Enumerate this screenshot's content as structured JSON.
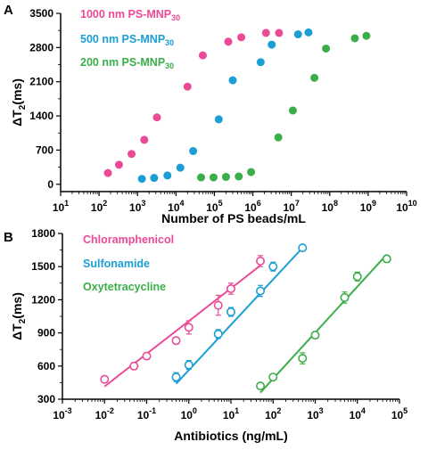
{
  "chart_data": [
    {
      "panel": "A",
      "type": "scatter",
      "xscale": "log",
      "xlim": [
        10,
        10000000000
      ],
      "ylim": [
        -150,
        3500
      ],
      "xlabel": "Number of PS beads/mL",
      "ylabel": {
        "main": "ΔT",
        "sub": "2",
        "unit": "(ms)"
      },
      "x_tick_labels": [
        {
          "base": "10",
          "exp": "1",
          "value": 10
        },
        {
          "base": "10",
          "exp": "2",
          "value": 100
        },
        {
          "base": "10",
          "exp": "3",
          "value": 1000
        },
        {
          "base": "10",
          "exp": "4",
          "value": 10000
        },
        {
          "base": "10",
          "exp": "5",
          "value": 100000
        },
        {
          "base": "10",
          "exp": "6",
          "value": 1000000
        },
        {
          "base": "10",
          "exp": "7",
          "value": 10000000
        },
        {
          "base": "10",
          "exp": "8",
          "value": 100000000
        },
        {
          "base": "10",
          "exp": "9",
          "value": 1000000000
        },
        {
          "base": "10",
          "exp": "10",
          "value": 10000000000
        }
      ],
      "y_tick_labels": [
        {
          "text": "0",
          "value": 0
        },
        {
          "text": "700",
          "value": 700
        },
        {
          "text": "1400",
          "value": 1400
        },
        {
          "text": "2100",
          "value": 2100
        },
        {
          "text": "2800",
          "value": 2800
        },
        {
          "text": "3500",
          "value": 3500
        }
      ],
      "legend": [
        {
          "main": "1000 nm PS-MNP",
          "sub": "30",
          "color": "#ec4a97"
        },
        {
          "main": "500 nm PS-MNP",
          "sub": "30",
          "color": "#1b9ed4"
        },
        {
          "main": "200 nm PS-MNP",
          "sub": "30",
          "color": "#3bae49"
        }
      ],
      "series": [
        {
          "color": "#ec4a97",
          "points": [
            [
              170,
              230
            ],
            [
              330,
              400
            ],
            [
              700,
              620
            ],
            [
              1500,
              910
            ],
            [
              3200,
              1370
            ],
            [
              20000,
              2000
            ],
            [
              50000,
              2640
            ],
            [
              230000,
              2920
            ],
            [
              500000,
              3010
            ],
            [
              2200000,
              3100
            ],
            [
              4800000,
              3100
            ]
          ]
        },
        {
          "color": "#1b9ed4",
          "points": [
            [
              1300,
              110
            ],
            [
              2700,
              130
            ],
            [
              6000,
              180
            ],
            [
              13000,
              340
            ],
            [
              28000,
              680
            ],
            [
              130000,
              1330
            ],
            [
              300000,
              2130
            ],
            [
              1600000,
              2500
            ],
            [
              3100000,
              2860
            ],
            [
              15000000,
              3070
            ],
            [
              28000000,
              3110
            ]
          ]
        },
        {
          "color": "#3bae49",
          "points": [
            [
              45000,
              140
            ],
            [
              95000,
              140
            ],
            [
              200000,
              150
            ],
            [
              430000,
              160
            ],
            [
              900000,
              250
            ],
            [
              4600000,
              960
            ],
            [
              11000000,
              1510
            ],
            [
              40000000,
              2180
            ],
            [
              80000000,
              2780
            ],
            [
              450000000,
              2990
            ],
            [
              900000000,
              3040
            ]
          ]
        }
      ]
    },
    {
      "panel": "B",
      "type": "scatter",
      "xscale": "log",
      "xlim": [
        0.001,
        100000
      ],
      "ylim": [
        300,
        1800
      ],
      "xlabel": "Antibiotics (ng/mL)",
      "ylabel": {
        "main": "ΔT",
        "sub": "2",
        "unit": "(ms)"
      },
      "x_tick_labels": [
        {
          "base": "10",
          "exp": "-3",
          "value": 0.001
        },
        {
          "base": "10",
          "exp": "-2",
          "value": 0.01
        },
        {
          "base": "10",
          "exp": "-1",
          "value": 0.1
        },
        {
          "base": "10",
          "exp": "0",
          "value": 1
        },
        {
          "base": "10",
          "exp": "1",
          "value": 10
        },
        {
          "base": "10",
          "exp": "2",
          "value": 100
        },
        {
          "base": "10",
          "exp": "3",
          "value": 1000
        },
        {
          "base": "10",
          "exp": "4",
          "value": 10000
        },
        {
          "base": "10",
          "exp": "5",
          "value": 100000
        }
      ],
      "y_tick_labels": [
        {
          "text": "300",
          "value": 300
        },
        {
          "text": "600",
          "value": 600
        },
        {
          "text": "900",
          "value": 900
        },
        {
          "text": "1200",
          "value": 1200
        },
        {
          "text": "1500",
          "value": 1500
        },
        {
          "text": "1800",
          "value": 1800
        }
      ],
      "legend": [
        {
          "main": "Chloramphenicol",
          "sub": "",
          "color": "#ec4a97"
        },
        {
          "main": "Sulfonamide",
          "sub": "",
          "color": "#1b9ed4"
        },
        {
          "main": "Oxytetracycline",
          "sub": "",
          "color": "#3bae49"
        }
      ],
      "series": [
        {
          "color": "#ec4a97",
          "points": [
            [
              0.01,
              480,
              20
            ],
            [
              0.05,
              600,
              30
            ],
            [
              0.1,
              690,
              30
            ],
            [
              0.5,
              830,
              30
            ],
            [
              1,
              950,
              60
            ],
            [
              5,
              1150,
              90
            ],
            [
              10,
              1300,
              50
            ],
            [
              50,
              1550,
              50
            ]
          ],
          "fit": [
            [
              0.01,
              415
            ],
            [
              50,
              1510
            ]
          ]
        },
        {
          "color": "#1b9ed4",
          "points": [
            [
              0.5,
              500,
              40
            ],
            [
              1,
              610,
              40
            ],
            [
              5,
              890,
              40
            ],
            [
              10,
              1090,
              40
            ],
            [
              50,
              1280,
              50
            ],
            [
              100,
              1500,
              40
            ],
            [
              500,
              1670,
              20
            ]
          ],
          "fit": [
            [
              0.5,
              440
            ],
            [
              500,
              1670
            ]
          ]
        },
        {
          "color": "#3bae49",
          "points": [
            [
              50,
              420,
              20
            ],
            [
              100,
              500,
              20
            ],
            [
              500,
              670,
              50
            ],
            [
              1000,
              880,
              30
            ],
            [
              5000,
              1220,
              50
            ],
            [
              10000,
              1410,
              40
            ],
            [
              50000,
              1570,
              30
            ]
          ],
          "fit": [
            [
              50,
              360
            ],
            [
              50000,
              1610
            ]
          ]
        }
      ]
    }
  ]
}
